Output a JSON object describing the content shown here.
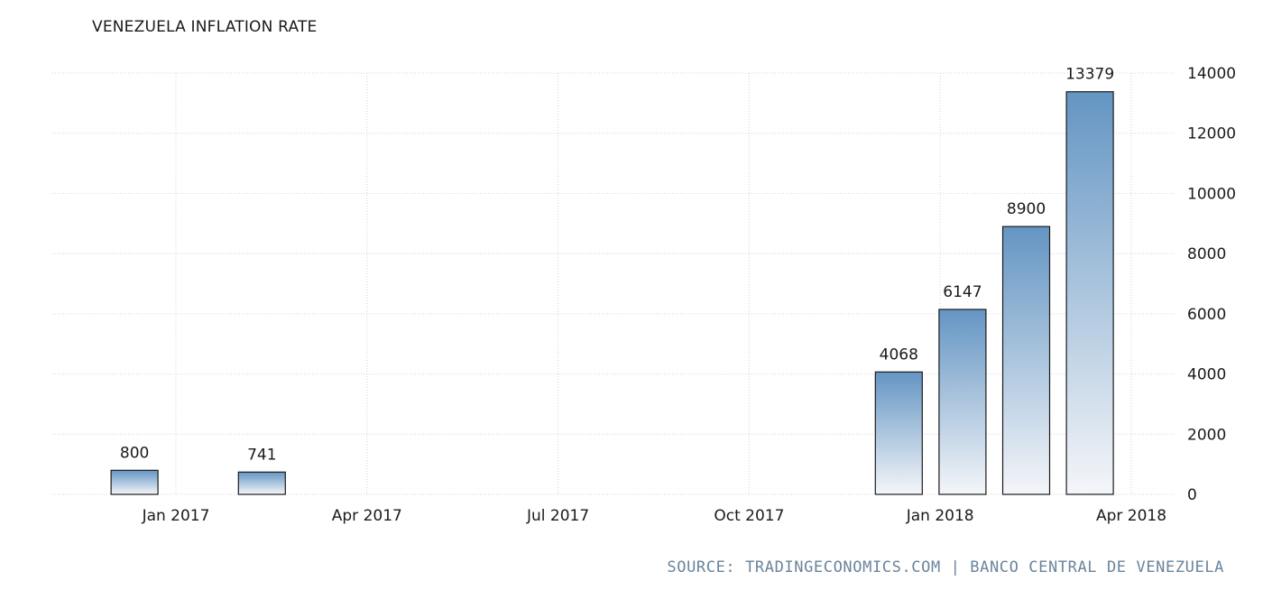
{
  "chart_data": {
    "type": "bar",
    "title": "VENEZUELA INFLATION RATE",
    "source": "SOURCE: TRADINGECONOMICS.COM | BANCO CENTRAL DE VENEZUELA",
    "x_tick_labels": [
      "Jan 2017",
      "Apr 2017",
      "Jul 2017",
      "Oct 2017",
      "Jan 2018",
      "Apr 2018"
    ],
    "y_tick_labels": [
      "0",
      "2000",
      "4000",
      "6000",
      "8000",
      "10000",
      "12000",
      "14000"
    ],
    "ylim": [
      0,
      14000
    ],
    "y_axis_side": "right",
    "grid": true,
    "points": [
      {
        "date": "2016-12",
        "value": 800
      },
      {
        "date": "2017-02",
        "value": 741
      },
      {
        "date": "2017-12",
        "value": 4068
      },
      {
        "date": "2018-01",
        "value": 6147
      },
      {
        "date": "2018-02",
        "value": 8900
      },
      {
        "date": "2018-03",
        "value": 13379
      }
    ],
    "colors": {
      "bar_top": "#6495c3",
      "bar_bottom": "#f4f6f9",
      "grid": "#d4d4d4",
      "source": "#6a849c"
    }
  }
}
